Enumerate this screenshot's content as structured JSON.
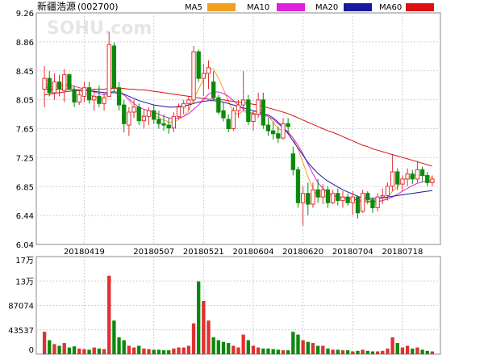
{
  "header": {
    "stock_name": "新疆浩源",
    "stock_code": "(002700)",
    "watermark": "SOHU.com"
  },
  "legend": [
    {
      "label": "MA5",
      "color": "#f0a020"
    },
    {
      "label": "MA10",
      "color": "#e020e0"
    },
    {
      "label": "MA20",
      "color": "#1818a0"
    },
    {
      "label": "MA60",
      "color": "#dd1111"
    }
  ],
  "colors": {
    "up": "#e03030",
    "down": "#0a8a0a",
    "grid": "#cfcfcf"
  },
  "chart_data": [
    {
      "type": "candlestick",
      "title": "",
      "y_ticks": [
        "9.26",
        "8.86",
        "8.45",
        "8.05",
        "7.65",
        "7.25",
        "6.85",
        "6.44",
        "6.04"
      ],
      "ylim": [
        6.04,
        9.26
      ],
      "x_tick_labels": [
        "20180419",
        "20180507",
        "20180521",
        "20180604",
        "20180620",
        "20180704",
        "20180718"
      ],
      "x_tick_indices": [
        8,
        22,
        32,
        42,
        52,
        62,
        72
      ],
      "candles": [
        [
          8.2,
          8.52,
          7.95,
          8.35
        ],
        [
          8.35,
          8.45,
          8.1,
          8.15
        ],
        [
          8.15,
          8.42,
          8.05,
          8.3
        ],
        [
          8.3,
          8.4,
          8.1,
          8.2
        ],
        [
          8.18,
          8.48,
          8.02,
          8.4
        ],
        [
          8.4,
          8.42,
          8.18,
          8.2
        ],
        [
          8.18,
          8.25,
          7.95,
          8.02
        ],
        [
          8.02,
          8.2,
          7.98,
          8.12
        ],
        [
          8.1,
          8.3,
          8.02,
          8.22
        ],
        [
          8.22,
          8.3,
          8.0,
          8.05
        ],
        [
          8.05,
          8.2,
          7.9,
          8.1
        ],
        [
          8.1,
          8.25,
          7.95,
          8.0
        ],
        [
          8.0,
          8.15,
          7.9,
          8.08
        ],
        [
          8.1,
          9.0,
          8.1,
          8.82
        ],
        [
          8.8,
          8.85,
          8.15,
          8.22
        ],
        [
          8.22,
          8.3,
          7.9,
          7.98
        ],
        [
          7.98,
          8.05,
          7.6,
          7.72
        ],
        [
          7.7,
          7.95,
          7.55,
          7.88
        ],
        [
          7.88,
          8.05,
          7.8,
          7.95
        ],
        [
          7.95,
          8.0,
          7.7,
          7.76
        ],
        [
          7.76,
          7.92,
          7.65,
          7.82
        ],
        [
          7.82,
          7.95,
          7.7,
          7.9
        ],
        [
          7.9,
          7.98,
          7.72,
          7.78
        ],
        [
          7.78,
          7.9,
          7.65,
          7.72
        ],
        [
          7.72,
          7.85,
          7.62,
          7.7
        ],
        [
          7.7,
          7.8,
          7.58,
          7.66
        ],
        [
          7.66,
          7.88,
          7.6,
          7.82
        ],
        [
          7.82,
          8.0,
          7.78,
          7.95
        ],
        [
          7.95,
          8.05,
          7.85,
          8.0
        ],
        [
          8.0,
          8.1,
          7.9,
          8.05
        ],
        [
          8.05,
          8.8,
          8.0,
          8.72
        ],
        [
          8.72,
          8.75,
          8.3,
          8.35
        ],
        [
          8.35,
          8.55,
          8.1,
          8.42
        ],
        [
          8.42,
          8.6,
          8.2,
          8.5
        ],
        [
          8.3,
          8.45,
          8.05,
          8.08
        ],
        [
          8.08,
          8.12,
          7.85,
          7.88
        ],
        [
          7.9,
          8.02,
          7.75,
          7.8
        ],
        [
          7.78,
          7.85,
          7.6,
          7.65
        ],
        [
          7.65,
          7.95,
          7.62,
          7.9
        ],
        [
          7.9,
          8.05,
          7.8,
          7.98
        ],
        [
          7.98,
          8.45,
          7.9,
          8.05
        ],
        [
          8.05,
          8.12,
          7.7,
          7.75
        ],
        [
          7.75,
          7.9,
          7.62,
          7.85
        ],
        [
          7.85,
          8.15,
          7.8,
          8.05
        ],
        [
          8.05,
          8.15,
          7.65,
          7.7
        ],
        [
          7.7,
          7.8,
          7.55,
          7.62
        ],
        [
          7.62,
          7.75,
          7.5,
          7.58
        ],
        [
          7.58,
          7.68,
          7.45,
          7.52
        ],
        [
          7.52,
          7.8,
          7.5,
          7.72
        ],
        [
          7.72,
          7.8,
          7.6,
          7.68
        ],
        [
          7.3,
          7.4,
          7.0,
          7.08
        ],
        [
          7.08,
          7.12,
          6.55,
          6.62
        ],
        [
          6.62,
          6.85,
          6.3,
          6.75
        ],
        [
          6.75,
          6.9,
          6.45,
          6.6
        ],
        [
          6.6,
          6.9,
          6.55,
          6.8
        ],
        [
          6.8,
          6.95,
          6.62,
          6.7
        ],
        [
          6.7,
          6.88,
          6.6,
          6.8
        ],
        [
          6.8,
          6.85,
          6.55,
          6.62
        ],
        [
          6.62,
          6.8,
          6.6,
          6.75
        ],
        [
          6.75,
          6.82,
          6.58,
          6.65
        ],
        [
          6.65,
          6.78,
          6.55,
          6.7
        ],
        [
          6.7,
          6.75,
          6.58,
          6.62
        ],
        [
          6.62,
          6.78,
          6.45,
          6.7
        ],
        [
          6.7,
          6.72,
          6.4,
          6.48
        ],
        [
          6.5,
          6.8,
          6.48,
          6.75
        ],
        [
          6.75,
          6.78,
          6.6,
          6.66
        ],
        [
          6.66,
          6.7,
          6.48,
          6.55
        ],
        [
          6.55,
          6.75,
          6.5,
          6.7
        ],
        [
          6.7,
          6.82,
          6.6,
          6.72
        ],
        [
          6.72,
          6.9,
          6.65,
          6.85
        ],
        [
          6.85,
          7.3,
          6.78,
          7.05
        ],
        [
          7.05,
          7.1,
          6.8,
          6.88
        ],
        [
          6.88,
          7.0,
          6.78,
          6.95
        ],
        [
          6.95,
          7.1,
          6.85,
          7.02
        ],
        [
          7.02,
          7.08,
          6.88,
          6.95
        ],
        [
          6.95,
          7.2,
          6.9,
          7.08
        ],
        [
          7.08,
          7.12,
          6.92,
          7.0
        ],
        [
          7.0,
          7.05,
          6.85,
          6.9
        ],
        [
          6.9,
          7.0,
          6.85,
          6.95
        ]
      ],
      "ma5": [
        8.25,
        8.27,
        8.28,
        8.26,
        8.28,
        8.25,
        8.2,
        8.18,
        8.15,
        8.12,
        8.1,
        8.08,
        8.05,
        8.18,
        8.25,
        8.2,
        8.12,
        8.05,
        7.92,
        7.86,
        7.82,
        7.84,
        7.84,
        7.8,
        7.77,
        7.74,
        7.74,
        7.78,
        7.82,
        7.9,
        8.06,
        8.2,
        8.34,
        8.48,
        8.48,
        8.35,
        8.2,
        8.03,
        7.88,
        7.85,
        7.9,
        7.85,
        7.88,
        7.92,
        7.88,
        7.82,
        7.74,
        7.65,
        7.62,
        7.62,
        7.52,
        7.36,
        7.18,
        6.98,
        6.82,
        6.7,
        6.71,
        6.7,
        6.73,
        6.7,
        6.7,
        6.68,
        6.68,
        6.64,
        6.63,
        6.63,
        6.62,
        6.62,
        6.65,
        6.69,
        6.78,
        6.84,
        6.92,
        6.98,
        6.99,
        7.0,
        7.0,
        6.99,
        6.97
      ],
      "ma10": [
        8.22,
        8.23,
        8.24,
        8.24,
        8.25,
        8.25,
        8.24,
        8.22,
        8.2,
        8.18,
        8.16,
        8.14,
        8.12,
        8.15,
        8.17,
        8.15,
        8.12,
        8.06,
        8.0,
        7.95,
        7.92,
        7.9,
        7.88,
        7.85,
        7.82,
        7.8,
        7.79,
        7.8,
        7.82,
        7.86,
        7.92,
        7.98,
        8.06,
        8.13,
        8.16,
        8.16,
        8.14,
        8.1,
        8.04,
        7.98,
        7.92,
        7.88,
        7.86,
        7.85,
        7.84,
        7.82,
        7.78,
        7.72,
        7.66,
        7.6,
        7.52,
        7.42,
        7.3,
        7.16,
        7.02,
        6.9,
        6.82,
        6.76,
        6.72,
        6.7,
        6.69,
        6.68,
        6.67,
        6.66,
        6.65,
        6.64,
        6.64,
        6.64,
        6.65,
        6.67,
        6.7,
        6.74,
        6.78,
        6.82,
        6.86,
        6.89,
        6.91,
        6.92,
        6.93
      ],
      "ma20": [
        8.2,
        8.2,
        8.2,
        8.2,
        8.2,
        8.2,
        8.19,
        8.19,
        8.18,
        8.18,
        8.17,
        8.16,
        8.15,
        8.15,
        8.15,
        8.14,
        8.13,
        8.1,
        8.07,
        8.04,
        8.02,
        8.0,
        7.98,
        7.97,
        7.96,
        7.95,
        7.95,
        7.96,
        7.97,
        7.98,
        8.0,
        8.02,
        8.03,
        8.04,
        8.04,
        8.03,
        8.02,
        8.0,
        7.98,
        7.96,
        7.94,
        7.92,
        7.9,
        7.88,
        7.86,
        7.84,
        7.8,
        7.74,
        7.67,
        7.58,
        7.48,
        7.38,
        7.28,
        7.18,
        7.1,
        7.03,
        6.97,
        6.92,
        6.88,
        6.84,
        6.8,
        6.77,
        6.74,
        6.71,
        6.69,
        6.68,
        6.68,
        6.68,
        6.69,
        6.7,
        6.71,
        6.72,
        6.73,
        6.74,
        6.75,
        6.76,
        6.77,
        6.78,
        6.79
      ],
      "ma60": [
        8.12,
        8.13,
        8.14,
        8.15,
        8.16,
        8.17,
        8.18,
        8.18,
        8.19,
        8.19,
        8.2,
        8.2,
        8.2,
        8.21,
        8.21,
        8.21,
        8.21,
        8.2,
        8.2,
        8.19,
        8.19,
        8.18,
        8.17,
        8.16,
        8.15,
        8.14,
        8.13,
        8.12,
        8.11,
        8.1,
        8.09,
        8.08,
        8.07,
        8.06,
        8.06,
        8.05,
        8.05,
        8.04,
        8.03,
        8.02,
        8.01,
        8.0,
        7.99,
        7.98,
        7.96,
        7.94,
        7.92,
        7.9,
        7.88,
        7.86,
        7.83,
        7.8,
        7.77,
        7.74,
        7.71,
        7.68,
        7.65,
        7.62,
        7.6,
        7.57,
        7.54,
        7.51,
        7.48,
        7.45,
        7.42,
        7.4,
        7.37,
        7.35,
        7.33,
        7.31,
        7.29,
        7.27,
        7.25,
        7.23,
        7.21,
        7.19,
        7.17,
        7.15,
        7.13
      ]
    },
    {
      "type": "bar",
      "title": "",
      "y_ticks": [
        "17万",
        "13万",
        "87074",
        "43537",
        "0"
      ],
      "ylim": [
        0,
        174148
      ],
      "volumes": [
        40000,
        25000,
        18000,
        15000,
        20000,
        12000,
        14000,
        10000,
        9000,
        8000,
        12000,
        10000,
        9000,
        140000,
        60000,
        30000,
        25000,
        15000,
        12000,
        15000,
        10000,
        9000,
        8000,
        8000,
        7000,
        7000,
        10000,
        12000,
        12000,
        15000,
        55000,
        130000,
        95000,
        60000,
        30000,
        25000,
        22000,
        20000,
        15000,
        12000,
        35000,
        25000,
        15000,
        12000,
        10000,
        10000,
        9000,
        8000,
        7000,
        7000,
        40000,
        35000,
        25000,
        22000,
        20000,
        15000,
        15000,
        10000,
        8000,
        8000,
        7000,
        7000,
        5000,
        6000,
        8000,
        6000,
        5000,
        5000,
        6000,
        10000,
        30000,
        20000,
        12000,
        15000,
        10000,
        12000,
        8000,
        6000,
        5000
      ]
    }
  ]
}
